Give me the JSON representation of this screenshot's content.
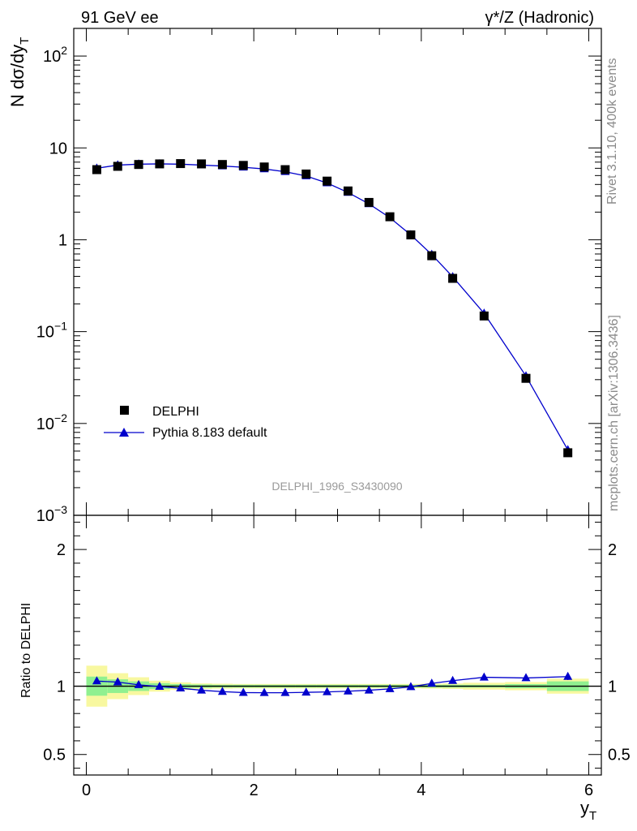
{
  "chart_data": {
    "type": "scatter",
    "title_left": "91 GeV ee",
    "title_right": "γ*/Z (Hadronic)",
    "analysis_label": "DELPHI_1996_S3430090",
    "side_label_top": "Rivet 3.1.10,  400k events",
    "side_label_bottom": "mcplots.cern.ch [arXiv:1306.3436]",
    "xlabel_main": "y",
    "xlabel_sub": "T",
    "ylabel_main": "N dσ/dy",
    "ylabel_sub": "T",
    "ratio_ylabel": "Ratio to DELPHI",
    "xlim": [
      -0.15,
      6.15
    ],
    "ylim_log": [
      0.001,
      200
    ],
    "ratio_ylim": [
      0.35,
      2.25
    ],
    "x_ticks": [
      0,
      2,
      4,
      6
    ],
    "x_tick_labels": [
      "0",
      "2",
      "4",
      "6"
    ],
    "y_ticks": [
      0.001,
      0.01,
      0.1,
      1,
      10,
      100
    ],
    "y_tick_labels": [
      {
        "base": "10",
        "exp": "−3"
      },
      {
        "base": "10",
        "exp": "−2"
      },
      {
        "base": "10",
        "exp": "−1"
      },
      {
        "base": "1",
        "exp": ""
      },
      {
        "base": "10",
        "exp": ""
      },
      {
        "base": "10",
        "exp": "2"
      }
    ],
    "ratio_ticks": [
      0.5,
      1,
      2
    ],
    "ratio_tick_labels": [
      "0.5",
      "1",
      "2"
    ],
    "legend": [
      {
        "name": "DELPHI",
        "marker": "square",
        "color": "#000000"
      },
      {
        "name": "Pythia 8.183 default",
        "marker": "triangle",
        "color": "#0000cc"
      }
    ],
    "data_series": {
      "name": "DELPHI",
      "color": "#000000",
      "x": [
        0.125,
        0.375,
        0.625,
        0.875,
        1.125,
        1.375,
        1.625,
        1.875,
        2.125,
        2.375,
        2.625,
        2.875,
        3.125,
        3.375,
        3.625,
        3.875,
        4.125,
        4.375,
        4.75,
        5.25,
        5.75
      ],
      "y": [
        5.8,
        6.3,
        6.6,
        6.7,
        6.75,
        6.7,
        6.6,
        6.45,
        6.2,
        5.8,
        5.2,
        4.35,
        3.4,
        2.55,
        1.78,
        1.13,
        0.67,
        0.38,
        0.148,
        0.031,
        0.0048
      ]
    },
    "mc_series": {
      "name": "Pythia 8.183 default",
      "color": "#0000cc",
      "x": [
        0.125,
        0.375,
        0.625,
        0.875,
        1.125,
        1.375,
        1.625,
        1.875,
        2.125,
        2.375,
        2.625,
        2.875,
        3.125,
        3.375,
        3.625,
        3.875,
        4.125,
        4.375,
        4.75,
        5.25,
        5.75
      ],
      "y": [
        6.0,
        6.5,
        6.65,
        6.7,
        6.65,
        6.5,
        6.35,
        6.15,
        5.9,
        5.5,
        4.95,
        4.15,
        3.27,
        2.46,
        1.74,
        1.13,
        0.69,
        0.395,
        0.158,
        0.0328,
        0.00515
      ],
      "ratio": [
        1.037,
        1.03,
        1.01,
        0.997,
        0.985,
        0.97,
        0.96,
        0.953,
        0.952,
        0.952,
        0.955,
        0.958,
        0.963,
        0.97,
        0.98,
        0.995,
        1.02,
        1.04,
        1.065,
        1.06,
        1.07
      ],
      "ratio_err": [
        0.01,
        0.01,
        0.005,
        0.005,
        0.005,
        0.005,
        0.005,
        0.005,
        0.005,
        0.005,
        0.005,
        0.005,
        0.005,
        0.005,
        0.005,
        0.005,
        0.005,
        0.006,
        0.008,
        0.01,
        0.025
      ]
    },
    "uncertainty_bands": {
      "x_edges": [
        0,
        0.25,
        0.5,
        0.75,
        1.0,
        1.25,
        1.5,
        1.75,
        2.0,
        2.25,
        2.5,
        2.75,
        3.0,
        3.25,
        3.5,
        3.75,
        4.0,
        4.25,
        4.5,
        5.0,
        5.5,
        6.0
      ],
      "green": [
        0.07,
        0.05,
        0.035,
        0.022,
        0.015,
        0.012,
        0.01,
        0.01,
        0.01,
        0.01,
        0.01,
        0.01,
        0.01,
        0.01,
        0.01,
        0.01,
        0.01,
        0.01,
        0.01,
        0.015,
        0.035
      ],
      "yellow": [
        0.15,
        0.095,
        0.065,
        0.04,
        0.028,
        0.02,
        0.018,
        0.016,
        0.016,
        0.016,
        0.016,
        0.016,
        0.016,
        0.016,
        0.016,
        0.016,
        0.018,
        0.02,
        0.025,
        0.03,
        0.055
      ]
    },
    "colors": {
      "green_band": "#90f090",
      "yellow_band": "#f8f8a0",
      "reference_line": "#000000"
    }
  }
}
